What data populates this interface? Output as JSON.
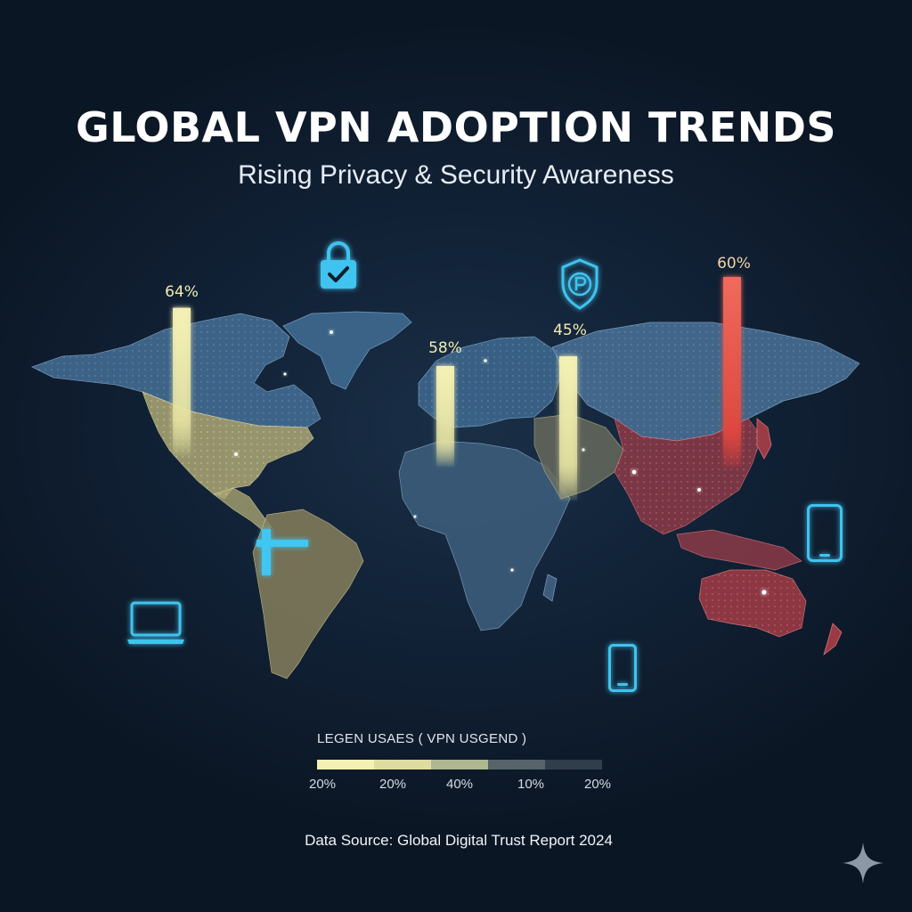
{
  "header": {
    "title": "GLOBAL VPN ADOPTION TRENDS",
    "subtitle": "Rising Privacy & Security Awareness"
  },
  "regions": [
    {
      "id": "north-america",
      "label": "64%",
      "value": 64,
      "color": "#f1efb0"
    },
    {
      "id": "europe",
      "label": "58%",
      "value": 58,
      "color": "#efe9ad"
    },
    {
      "id": "middle-east",
      "label": "45%",
      "value": 45,
      "color": "#f2ecab"
    },
    {
      "id": "asia-pacific",
      "label": "60%",
      "value": 60,
      "color": "#ec5a50"
    }
  ],
  "icons": [
    "lock-icon",
    "shield-icon",
    "laptop-icon",
    "smartphone-icon",
    "tablet-icon",
    "sparkle-icon"
  ],
  "legend": {
    "title": "LEGEN USAES ( VPN USGEND )",
    "swatches": [
      "#f4f0b4",
      "#dedca0",
      "#aeb78f",
      "#56646a",
      "#303d4b"
    ],
    "ticks": [
      "20%",
      "20%",
      "40%",
      "10%",
      "20%"
    ]
  },
  "footer": {
    "source": "Data Source: Global Digital Trust Report 2024"
  },
  "colors": {
    "background": "#0f1d2e",
    "land_blue": "#4a7296",
    "land_yellow": "#c8c083",
    "land_red": "#a53a44",
    "icon_cyan": "#3fc3ee"
  }
}
